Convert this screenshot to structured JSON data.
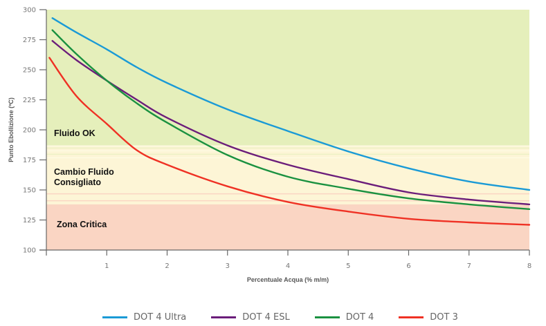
{
  "chart_data": {
    "type": "line",
    "title": "",
    "xlabel": "Percentuale Acqua  (% m/m)",
    "ylabel": "Punto Ebollizione (ºC)",
    "xlim": [
      0,
      8
    ],
    "ylim": [
      100,
      300
    ],
    "x_ticks": [
      1,
      2,
      3,
      4,
      5,
      6,
      7,
      8
    ],
    "y_ticks": [
      100,
      125,
      150,
      175,
      200,
      225,
      250,
      275,
      300
    ],
    "grid": false,
    "legend_position": "bottom",
    "zones": [
      {
        "name": "Fluido OK",
        "from": 187,
        "to": 300,
        "color": "#e5efbb"
      },
      {
        "name": "Cambio Fluido Consigliato",
        "from": 138,
        "to": 187,
        "color": "#fdf5d6"
      },
      {
        "name": "Zona Critica",
        "from": 100,
        "to": 138,
        "color": "#fad5c3"
      }
    ],
    "series": [
      {
        "name": "DOT 4 Ultra",
        "color": "#1a9ad6",
        "x": [
          0.1,
          0.5,
          1,
          1.5,
          2,
          3,
          4,
          5,
          6,
          7,
          8
        ],
        "y": [
          293,
          281,
          267,
          252,
          239,
          217,
          199,
          182,
          168,
          157,
          150
        ]
      },
      {
        "name": "DOT 4 ESL",
        "color": "#6b1d7a",
        "x": [
          0.1,
          0.5,
          1,
          1.5,
          2,
          3,
          4,
          5,
          6,
          7,
          8
        ],
        "y": [
          274,
          258,
          241,
          225,
          210,
          187,
          171,
          159,
          148,
          142,
          138
        ]
      },
      {
        "name": "DOT 4",
        "color": "#1a9140",
        "x": [
          0.1,
          0.5,
          1,
          1.5,
          2,
          3,
          4,
          5,
          6,
          7,
          8
        ],
        "y": [
          283,
          263,
          241,
          222,
          206,
          179,
          161,
          151,
          143,
          138,
          134
        ]
      },
      {
        "name": "DOT 3",
        "color": "#ef3124",
        "x": [
          0.05,
          0.5,
          1,
          1.5,
          2,
          3,
          4,
          5,
          6,
          7,
          8
        ],
        "y": [
          260,
          228,
          205,
          183,
          171,
          153,
          140,
          132,
          126,
          123,
          121
        ]
      }
    ]
  }
}
